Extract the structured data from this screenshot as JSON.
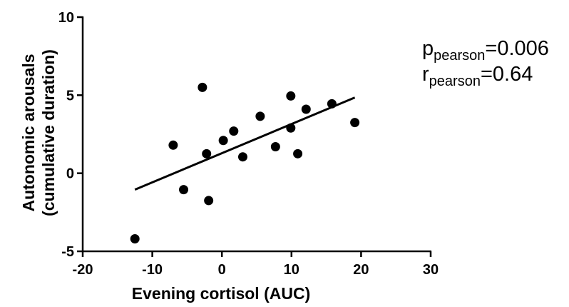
{
  "chart_data": {
    "type": "scatter",
    "xlabel": "Evening cortisol (AUC)",
    "ylabel_lines": [
      "Autonomic arousals",
      "(cumulative duration)"
    ],
    "xlim": [
      -20,
      30
    ],
    "ylim": [
      -5,
      10
    ],
    "x_ticks": [
      -20,
      -10,
      0,
      10,
      20,
      30
    ],
    "y_ticks": [
      -5,
      0,
      5,
      10
    ],
    "x_tick_labels": [
      "-20",
      "-10",
      "0",
      "10",
      "20",
      "30"
    ],
    "y_tick_labels": [
      "-5",
      "0",
      "5",
      "10"
    ],
    "points": [
      {
        "x": -12.5,
        "y": -4.2
      },
      {
        "x": -7.0,
        "y": 1.8
      },
      {
        "x": -5.5,
        "y": -1.05
      },
      {
        "x": -2.8,
        "y": 5.5
      },
      {
        "x": -2.2,
        "y": 1.25
      },
      {
        "x": -1.9,
        "y": -1.75
      },
      {
        "x": 0.2,
        "y": 2.1
      },
      {
        "x": 1.7,
        "y": 2.7
      },
      {
        "x": 3.0,
        "y": 1.05
      },
      {
        "x": 5.5,
        "y": 3.65
      },
      {
        "x": 7.7,
        "y": 1.7
      },
      {
        "x": 9.9,
        "y": 4.95
      },
      {
        "x": 9.9,
        "y": 2.9
      },
      {
        "x": 10.9,
        "y": 1.25
      },
      {
        "x": 12.1,
        "y": 4.1
      },
      {
        "x": 15.8,
        "y": 4.45
      },
      {
        "x": 19.1,
        "y": 3.25
      }
    ],
    "regression_line": {
      "x": [
        -12.5,
        19.1
      ],
      "y": [
        -1.05,
        4.85
      ]
    },
    "grid": false,
    "legend": "none"
  },
  "stats": {
    "p_symbol": "p",
    "p_subscript": "pearson",
    "p_value": "=0.006",
    "r_symbol": "r",
    "r_subscript": "pearson",
    "r_value": "=0.64"
  }
}
